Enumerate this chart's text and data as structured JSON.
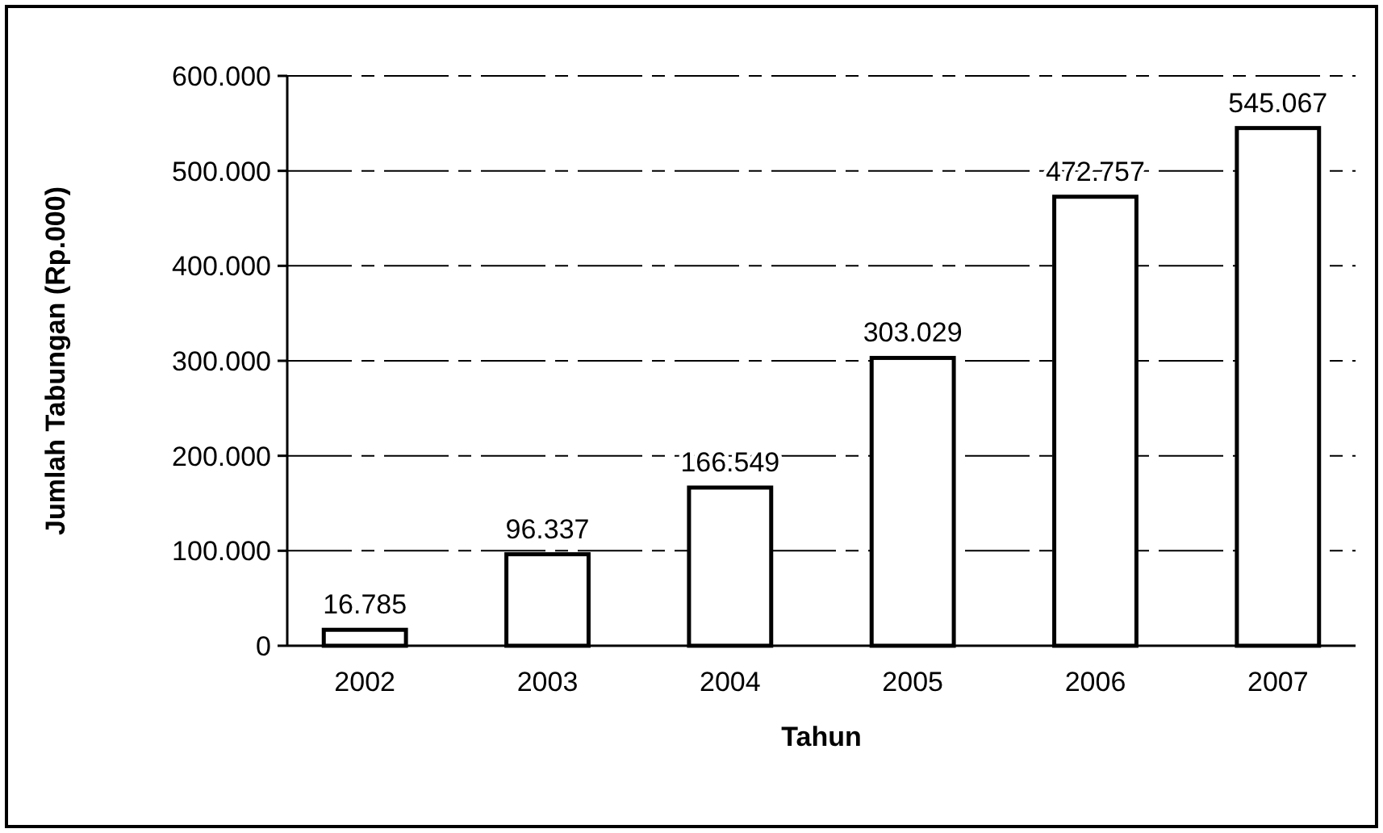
{
  "chart_data": {
    "type": "bar",
    "xlabel": "Tahun",
    "ylabel": "Jumlah Tabungan (Rp.000)",
    "categories": [
      "2002",
      "2003",
      "2004",
      "2005",
      "2006",
      "2007"
    ],
    "values": [
      16785,
      96337,
      166549,
      303029,
      472757,
      545067
    ],
    "value_labels": [
      "16.785",
      "96.337",
      "166.549",
      "303.029",
      "472.757",
      "545.067"
    ],
    "color": "#ffffff",
    "ylim": [
      0,
      600000
    ],
    "yticks": [
      0,
      {
        "value": 100000,
        "label": "100.000"
      },
      {
        "value": 200000,
        "label": "200.000"
      },
      {
        "value": 300000,
        "label": "300.000"
      },
      {
        "value": 400000,
        "label": "400.000"
      },
      {
        "value": 500000,
        "label": "500.000"
      },
      {
        "value": 600000,
        "label": "600.000"
      }
    ],
    "grid": "y"
  }
}
